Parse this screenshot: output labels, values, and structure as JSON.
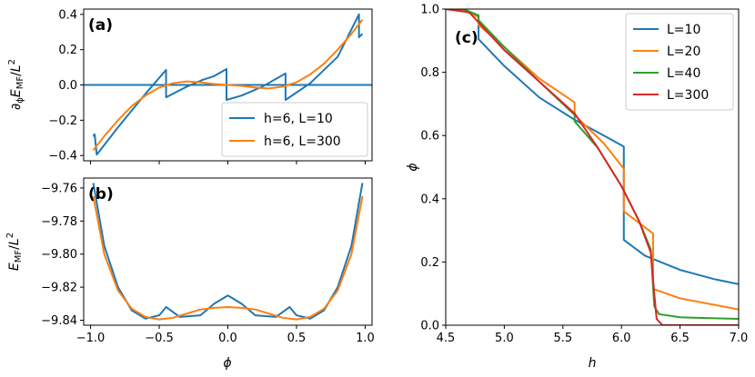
{
  "chart_data": [
    {
      "panel": "a",
      "panel_label": "(a)",
      "type": "line",
      "xlabel": "",
      "ylabel": "∂ϕE_MF/L²",
      "ylabel_parts": {
        "partial": "∂",
        "sub_phi": "ϕ",
        "e": "E",
        "sub_mf": "MF",
        "slash": "/",
        "l": "L",
        "sup": "2"
      },
      "xlim": [
        -1.05,
        1.05
      ],
      "ylim": [
        -0.43,
        0.43
      ],
      "xticks": [
        -1.0,
        -0.5,
        0.0,
        0.5,
        1.0
      ],
      "xticklabels_shown": false,
      "yticks": [
        -0.4,
        -0.2,
        0.0,
        0.2,
        0.4
      ],
      "yticklabels": [
        "−0.4",
        "−0.2",
        "0.0",
        "0.2",
        "0.4"
      ],
      "legend_position": "lower-right",
      "series": [
        {
          "name": "zero line",
          "color": "#1f77b4",
          "x": [
            -1.05,
            1.05
          ],
          "y": [
            0,
            0
          ],
          "in_legend": false
        },
        {
          "name": "h=6, L=10",
          "color": "#1f77b4",
          "in_legend": true,
          "x": [
            -0.98,
            -0.97,
            -0.97,
            -0.955,
            -0.955,
            -0.8,
            -0.6,
            -0.45,
            -0.45,
            -0.3,
            -0.18,
            -0.1,
            -0.01,
            -0.01,
            0.1,
            0.25,
            0.42,
            0.42,
            0.6,
            0.8,
            0.955,
            0.955,
            0.98
          ],
          "y": [
            -0.28,
            -0.295,
            -0.28,
            -0.395,
            -0.395,
            -0.24,
            -0.05,
            0.085,
            -0.07,
            -0.01,
            0.03,
            0.05,
            0.09,
            -0.085,
            -0.06,
            -0.01,
            0.065,
            -0.085,
            0.01,
            0.16,
            0.4,
            0.27,
            0.29
          ]
        },
        {
          "name": "h=6, L=300",
          "color": "#ff7f0e",
          "in_legend": true,
          "x": [
            -0.98,
            -0.9,
            -0.8,
            -0.7,
            -0.6,
            -0.5,
            -0.4,
            -0.3,
            -0.2,
            -0.1,
            0.0,
            0.1,
            0.2,
            0.3,
            0.4,
            0.5,
            0.6,
            0.7,
            0.8,
            0.9,
            0.98
          ],
          "y": [
            -0.37,
            -0.29,
            -0.2,
            -0.12,
            -0.06,
            -0.015,
            0.01,
            0.02,
            0.015,
            0.005,
            0.0,
            -0.005,
            -0.015,
            -0.02,
            -0.01,
            0.015,
            0.06,
            0.12,
            0.2,
            0.29,
            0.37
          ]
        }
      ]
    },
    {
      "panel": "b",
      "panel_label": "(b)",
      "type": "line",
      "xlabel": "ϕ",
      "ylabel": "E_MF/L²",
      "ylabel_parts": {
        "e": "E",
        "sub_mf": "MF",
        "slash": "/",
        "l": "L",
        "sup": "2"
      },
      "xlim": [
        -1.05,
        1.05
      ],
      "ylim": [
        -9.843,
        -9.754
      ],
      "xticks": [
        -1.0,
        -0.5,
        0.0,
        0.5,
        1.0
      ],
      "xticklabels": [
        "−1.0",
        "−0.5",
        "0.0",
        "0.5",
        "1.0"
      ],
      "yticks": [
        -9.76,
        -9.78,
        -9.8,
        -9.82,
        -9.84
      ],
      "yticklabels": [
        "−9.76",
        "−9.78",
        "−9.80",
        "−9.82",
        "−9.84"
      ],
      "series": [
        {
          "name": "h=6, L=10",
          "color": "#1f77b4",
          "x": [
            -0.98,
            -0.9,
            -0.8,
            -0.7,
            -0.6,
            -0.5,
            -0.45,
            -0.35,
            -0.2,
            -0.1,
            0.0,
            0.1,
            0.2,
            0.35,
            0.45,
            0.5,
            0.6,
            0.7,
            0.8,
            0.9,
            0.98
          ],
          "y": [
            -9.757,
            -9.795,
            -9.82,
            -9.834,
            -9.839,
            -9.837,
            -9.832,
            -9.838,
            -9.837,
            -9.83,
            -9.825,
            -9.83,
            -9.837,
            -9.838,
            -9.832,
            -9.837,
            -9.839,
            -9.834,
            -9.82,
            -9.795,
            -9.757
          ]
        },
        {
          "name": "h=6, L=300",
          "color": "#ff7f0e",
          "x": [
            -0.98,
            -0.9,
            -0.8,
            -0.7,
            -0.6,
            -0.5,
            -0.4,
            -0.3,
            -0.2,
            -0.1,
            0.0,
            0.1,
            0.2,
            0.3,
            0.4,
            0.5,
            0.6,
            0.7,
            0.8,
            0.9,
            0.98
          ],
          "y": [
            -9.765,
            -9.8,
            -9.822,
            -9.833,
            -9.838,
            -9.8395,
            -9.8385,
            -9.836,
            -9.8335,
            -9.8325,
            -9.832,
            -9.8325,
            -9.8335,
            -9.836,
            -9.8385,
            -9.8395,
            -9.838,
            -9.833,
            -9.822,
            -9.8,
            -9.765
          ]
        }
      ]
    },
    {
      "panel": "c",
      "panel_label": "(c)",
      "type": "line",
      "xlabel": "h",
      "ylabel": "ϕ",
      "xlim": [
        4.5,
        7.0
      ],
      "ylim": [
        0.0,
        1.0
      ],
      "xticks": [
        4.5,
        5.0,
        5.5,
        6.0,
        6.5,
        7.0
      ],
      "xticklabels": [
        "4.5",
        "5.0",
        "5.5",
        "6.0",
        "6.5",
        "7.0"
      ],
      "yticks": [
        0.0,
        0.2,
        0.4,
        0.6,
        0.8,
        1.0
      ],
      "yticklabels": [
        "0.0",
        "0.2",
        "0.4",
        "0.6",
        "0.8",
        "1.0"
      ],
      "legend_position": "top-right",
      "series": [
        {
          "name": "L=10",
          "color": "#1f77b4",
          "x": [
            4.5,
            4.62,
            4.78,
            4.78,
            5.0,
            5.3,
            5.6,
            5.85,
            6.02,
            6.02,
            6.2,
            6.5,
            6.8,
            7.0
          ],
          "y": [
            1.0,
            1.0,
            0.98,
            0.905,
            0.82,
            0.72,
            0.65,
            0.6,
            0.565,
            0.27,
            0.22,
            0.175,
            0.145,
            0.13
          ]
        },
        {
          "name": "L=20",
          "color": "#ff7f0e",
          "x": [
            4.5,
            4.62,
            4.78,
            4.78,
            5.0,
            5.3,
            5.6,
            5.6,
            5.85,
            6.02,
            6.02,
            6.27,
            6.27,
            6.5,
            7.0
          ],
          "y": [
            1.0,
            1.0,
            0.975,
            0.95,
            0.88,
            0.78,
            0.705,
            0.665,
            0.575,
            0.495,
            0.36,
            0.29,
            0.115,
            0.085,
            0.05
          ]
        },
        {
          "name": "L=40",
          "color": "#2ca02c",
          "x": [
            4.5,
            4.65,
            4.78,
            4.78,
            5.0,
            5.3,
            5.6,
            5.6,
            5.8,
            6.0,
            6.15,
            6.25,
            6.28,
            6.32,
            6.5,
            7.0
          ],
          "y": [
            1.0,
            1.0,
            0.98,
            0.965,
            0.88,
            0.77,
            0.665,
            0.645,
            0.56,
            0.44,
            0.33,
            0.24,
            0.06,
            0.035,
            0.025,
            0.02
          ]
        },
        {
          "name": "L=300",
          "color": "#d62728",
          "x": [
            4.5,
            4.7,
            5.0,
            5.3,
            5.6,
            5.8,
            6.0,
            6.15,
            6.25,
            6.28,
            6.3,
            6.35,
            6.5,
            7.0
          ],
          "y": [
            1.0,
            0.99,
            0.87,
            0.77,
            0.67,
            0.56,
            0.44,
            0.33,
            0.23,
            0.1,
            0.02,
            0.0,
            0.0,
            0.0
          ]
        }
      ]
    }
  ]
}
